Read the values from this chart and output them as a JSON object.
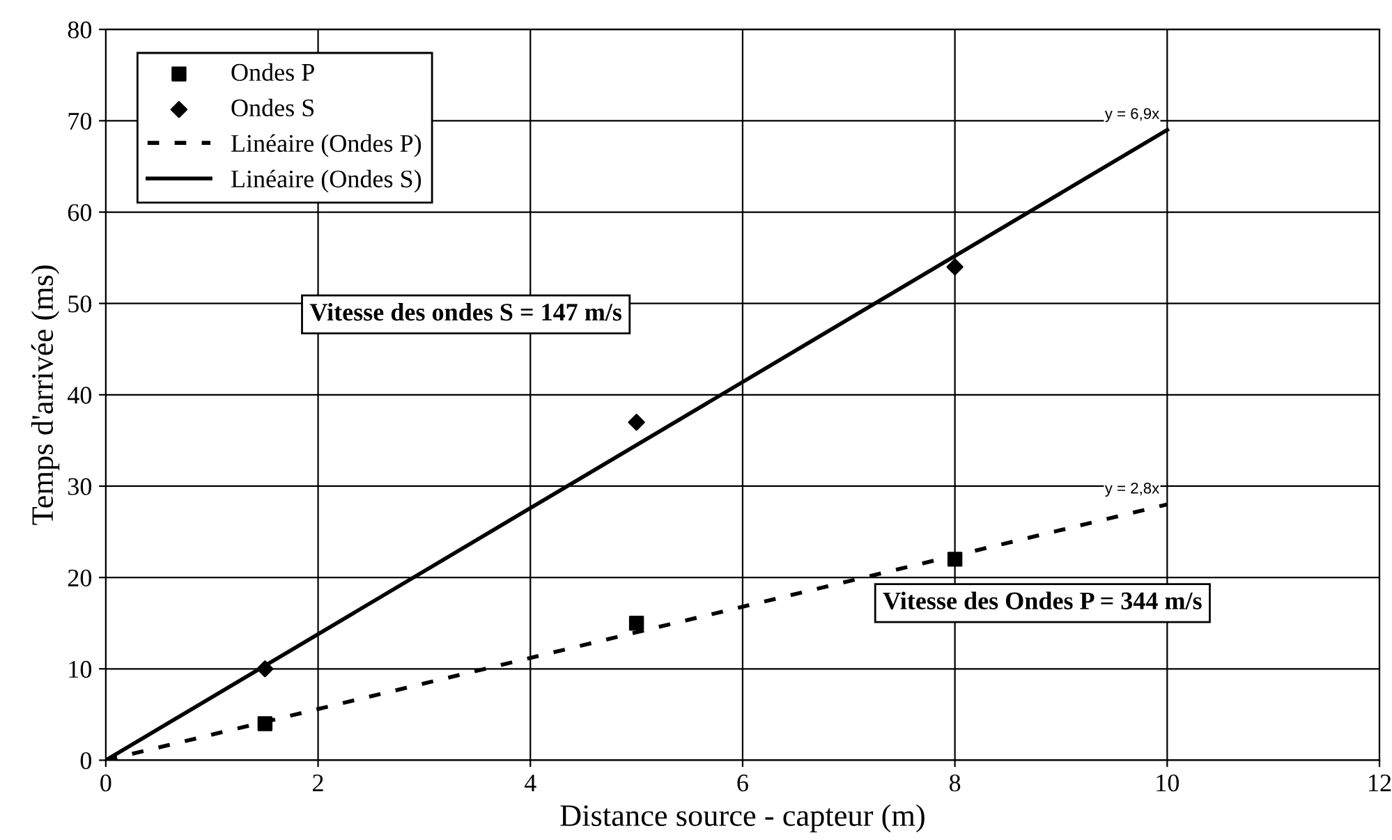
{
  "chart_data": {
    "type": "scatter",
    "xlabel": "Distance source - capteur (m)",
    "ylabel": "Temps d'arrivée (ms)",
    "xlim": [
      0,
      12
    ],
    "xticks": [
      0,
      2,
      4,
      6,
      8,
      10,
      12
    ],
    "ylim": [
      0,
      80
    ],
    "yticks": [
      0,
      10,
      20,
      30,
      40,
      50,
      60,
      70,
      80
    ],
    "grid": true,
    "legend": "top left",
    "series": [
      {
        "name": "Ondes P",
        "marker": "square",
        "color": "#000000",
        "x": [
          1.5,
          5,
          8
        ],
        "values": [
          4,
          15,
          22
        ]
      },
      {
        "name": "Ondes S",
        "marker": "diamond",
        "color": "#000000",
        "x": [
          1.5,
          5,
          8
        ],
        "values": [
          10,
          37,
          54
        ]
      },
      {
        "name": "Linéaire (Ondes P)",
        "type": "line",
        "line_style": "dashed",
        "marker": "none",
        "color": "#000000",
        "x": [
          0,
          10
        ],
        "values": [
          0,
          28
        ]
      },
      {
        "name": "Linéaire (Ondes S)",
        "type": "line",
        "line_style": "solid",
        "marker": "none",
        "color": "#000000",
        "x": [
          0,
          10
        ],
        "values": [
          0,
          69
        ]
      }
    ],
    "annotations": [
      {
        "text": "y = 6,9x",
        "x": 10,
        "y": 69
      },
      {
        "text": "y = 2,8x",
        "x": 10,
        "y": 28
      },
      "Vitesse des ondes S = 147 m/s",
      "Vitesse des Ondes P = 344 m/s"
    ]
  }
}
